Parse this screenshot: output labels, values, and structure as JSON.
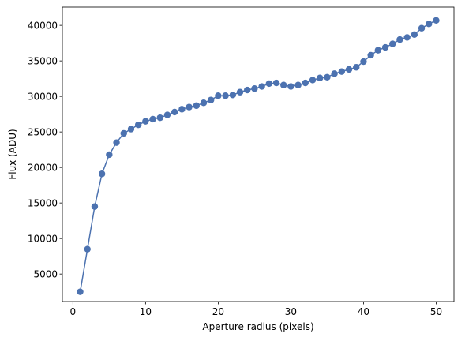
{
  "chart_data": {
    "type": "line",
    "title": "",
    "xlabel": "Aperture radius (pixels)",
    "ylabel": "Flux (ADU)",
    "xlim": [
      -1.45,
      52.45
    ],
    "ylim": [
      1130,
      42570
    ],
    "xticks": [
      0,
      10,
      20,
      30,
      40,
      50
    ],
    "yticks": [
      5000,
      10000,
      15000,
      20000,
      25000,
      30000,
      35000,
      40000
    ],
    "grid": false,
    "legend": "none",
    "color": "#4c72b0",
    "markers": true,
    "x": [
      1,
      2,
      3,
      4,
      5,
      6,
      7,
      8,
      9,
      10,
      11,
      12,
      13,
      14,
      15,
      16,
      17,
      18,
      19,
      20,
      21,
      22,
      23,
      24,
      25,
      26,
      27,
      28,
      29,
      30,
      31,
      32,
      33,
      34,
      35,
      36,
      37,
      38,
      39,
      40,
      41,
      42,
      43,
      44,
      45,
      46,
      47,
      48,
      49,
      50
    ],
    "y": [
      2500,
      8500,
      14500,
      19100,
      21800,
      23500,
      24800,
      25400,
      26000,
      26500,
      26800,
      27000,
      27400,
      27800,
      28200,
      28500,
      28700,
      29100,
      29500,
      30100,
      30100,
      30200,
      30600,
      30900,
      31100,
      31400,
      31800,
      31900,
      31600,
      31400,
      31600,
      31900,
      32300,
      32600,
      32700,
      33200,
      33500,
      33800,
      34100,
      34900,
      35800,
      36500,
      36900,
      37400,
      38000,
      38300,
      38700,
      39600,
      40200,
      40700
    ]
  }
}
